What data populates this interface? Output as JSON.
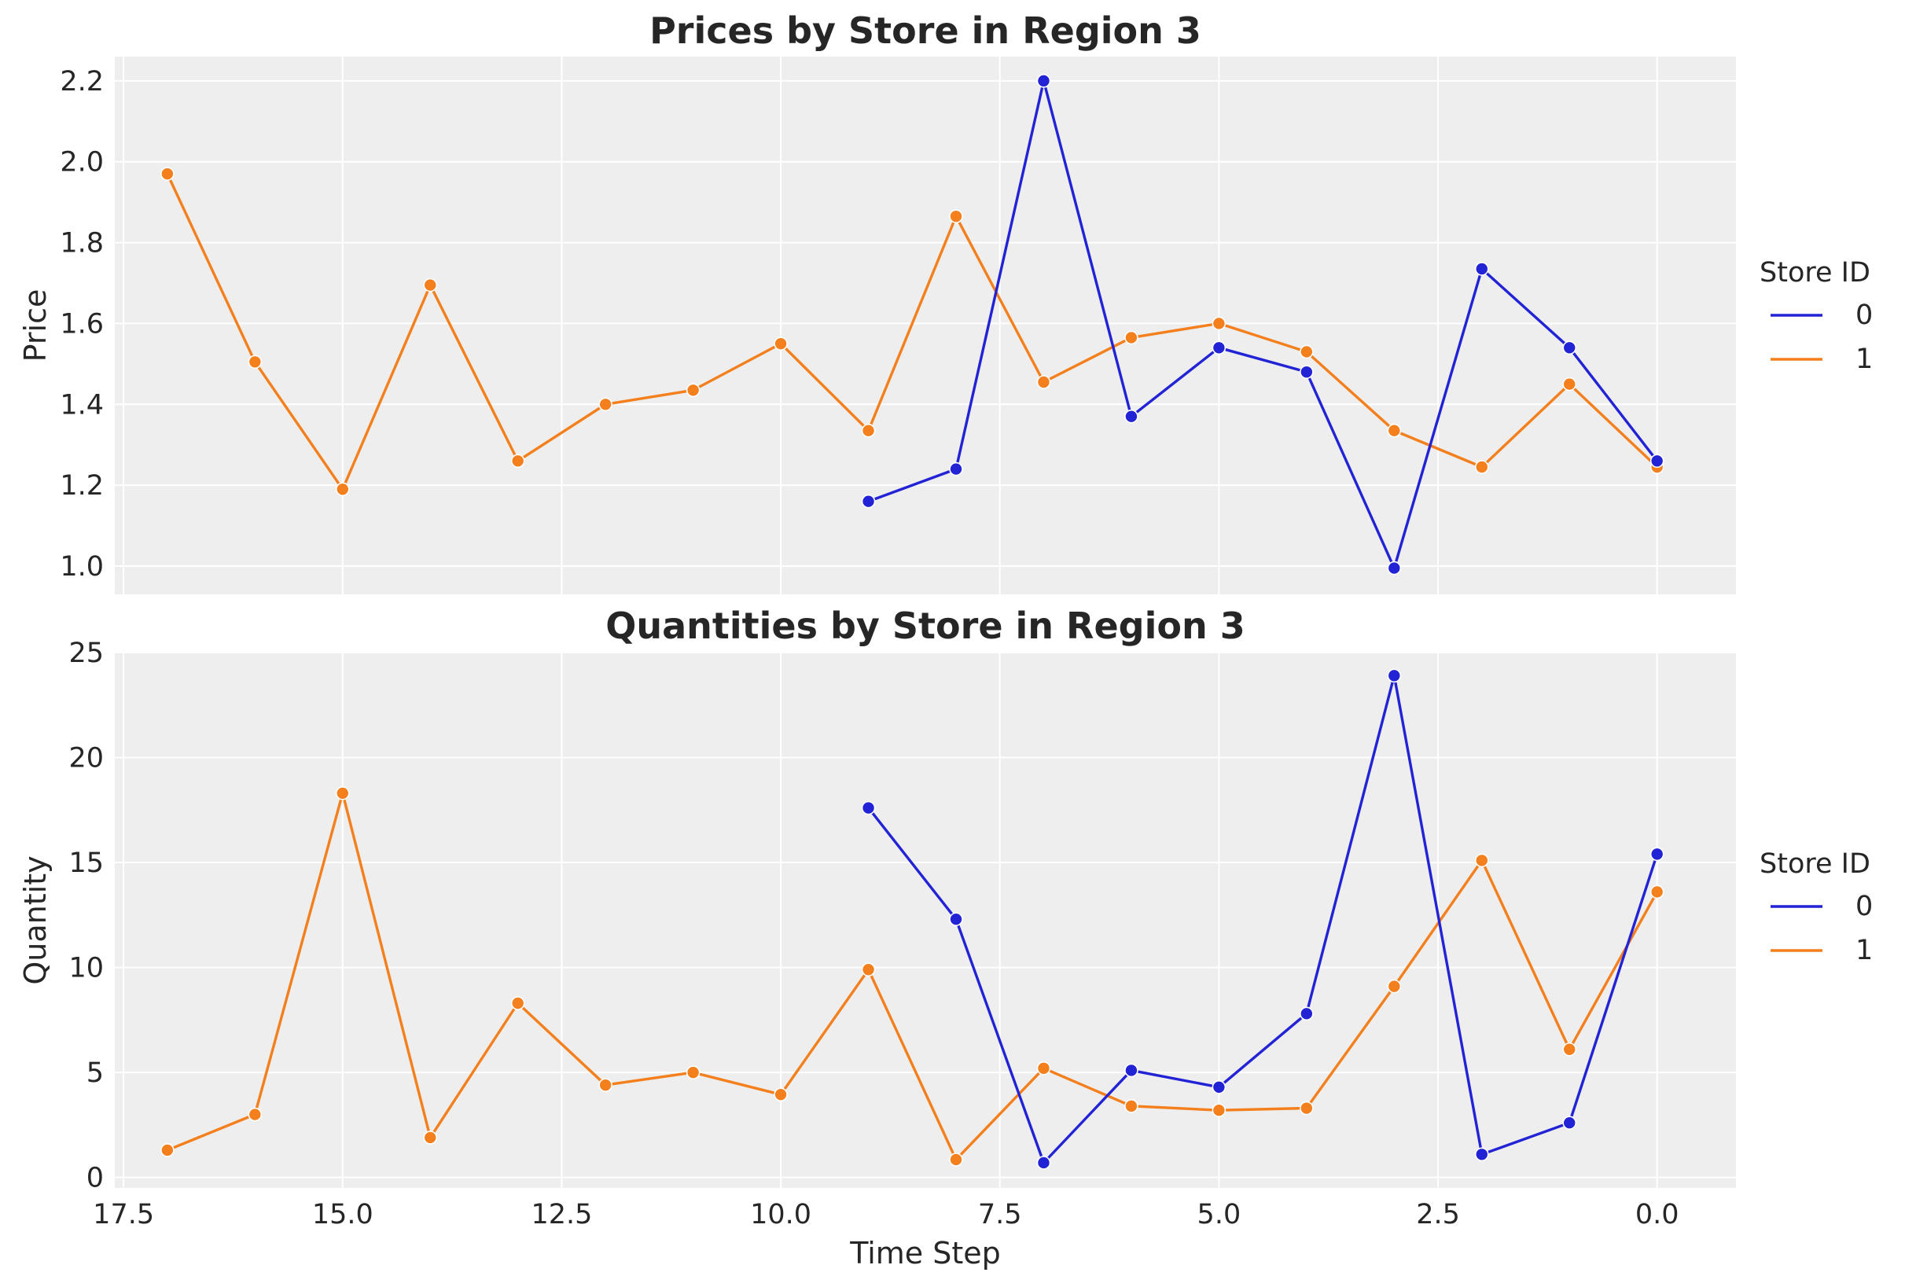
{
  "chart_data": [
    {
      "type": "line",
      "title": "Prices by Store in Region 3",
      "xlabel": "",
      "ylabel": "Price",
      "xlim": [
        17.6,
        -0.9
      ],
      "ylim": [
        0.93,
        2.26
      ],
      "x_inverted": true,
      "grid": true,
      "x_ticks": [
        17.5,
        15.0,
        12.5,
        10.0,
        7.5,
        5.0,
        2.5,
        0.0
      ],
      "x_tick_labels": [
        "17.5",
        "15.0",
        "12.5",
        "10.0",
        "7.5",
        "5.0",
        "2.5",
        "0.0"
      ],
      "x_tick_labels_visible": false,
      "y_ticks": [
        1.0,
        1.2,
        1.4,
        1.6,
        1.8,
        2.0,
        2.2
      ],
      "y_tick_labels": [
        "1.0",
        "1.2",
        "1.4",
        "1.6",
        "1.8",
        "2.0",
        "2.2"
      ],
      "legend": {
        "title": "Store ID",
        "placement": "right"
      },
      "series": [
        {
          "name": "0",
          "color": "#2323d6",
          "x": [
            9,
            8,
            7,
            6,
            5,
            4,
            3,
            2,
            1,
            0
          ],
          "y": [
            1.16,
            1.24,
            2.2,
            1.37,
            1.54,
            1.48,
            0.995,
            1.735,
            1.54,
            1.26
          ]
        },
        {
          "name": "1",
          "color": "#f47f1d",
          "x": [
            17,
            16,
            15,
            14,
            13,
            12,
            11,
            10,
            9,
            8,
            7,
            6,
            5,
            4,
            3,
            2,
            1,
            0
          ],
          "y": [
            1.97,
            1.505,
            1.19,
            1.695,
            1.26,
            1.4,
            1.435,
            1.55,
            1.335,
            1.865,
            1.455,
            1.565,
            1.6,
            1.53,
            1.335,
            1.245,
            1.45,
            1.245
          ]
        }
      ]
    },
    {
      "type": "line",
      "title": "Quantities by Store in Region 3",
      "xlabel": "Time Step",
      "ylabel": "Quantity",
      "xlim": [
        17.6,
        -0.9
      ],
      "ylim": [
        -0.5,
        25.0
      ],
      "x_inverted": true,
      "grid": true,
      "x_ticks": [
        17.5,
        15.0,
        12.5,
        10.0,
        7.5,
        5.0,
        2.5,
        0.0
      ],
      "x_tick_labels": [
        "17.5",
        "15.0",
        "12.5",
        "10.0",
        "7.5",
        "5.0",
        "2.5",
        "0.0"
      ],
      "x_tick_labels_visible": true,
      "y_ticks": [
        0,
        5,
        10,
        15,
        20,
        25
      ],
      "y_tick_labels": [
        "0",
        "5",
        "10",
        "15",
        "20",
        "25"
      ],
      "legend": {
        "title": "Store ID",
        "placement": "right"
      },
      "series": [
        {
          "name": "0",
          "color": "#2323d6",
          "x": [
            9,
            8,
            7,
            6,
            5,
            4,
            3,
            2,
            1,
            0
          ],
          "y": [
            17.6,
            12.3,
            0.7,
            5.1,
            4.3,
            7.8,
            23.9,
            1.1,
            2.6,
            15.4
          ]
        },
        {
          "name": "1",
          "color": "#f47f1d",
          "x": [
            17,
            16,
            15,
            14,
            13,
            12,
            11,
            10,
            9,
            8,
            7,
            6,
            5,
            4,
            3,
            2,
            1,
            0
          ],
          "y": [
            1.3,
            3.0,
            18.3,
            1.9,
            8.3,
            4.4,
            5.0,
            3.95,
            9.9,
            0.85,
            5.2,
            3.4,
            3.2,
            3.3,
            9.1,
            15.1,
            6.1,
            13.6
          ]
        }
      ]
    }
  ]
}
